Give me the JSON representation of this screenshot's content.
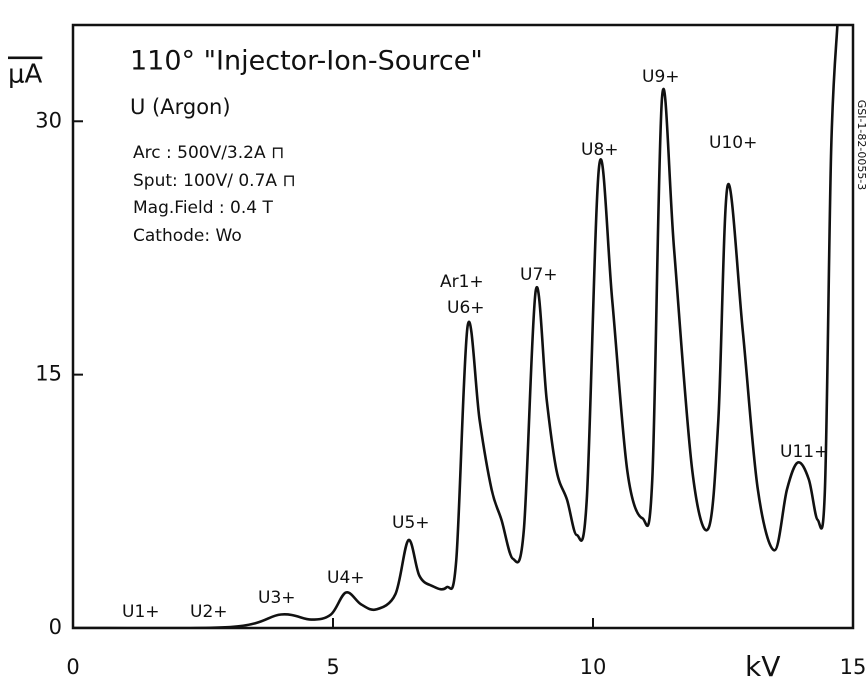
{
  "chart_data": {
    "type": "line",
    "title": "110° \"Injector-Ion-Source\"",
    "subtitle": "U (Argon)",
    "notes": [
      "Arc : 500V/3.2A ⊓",
      "Sput: 100V/ 0.7A ⊓",
      "Mag.Field : 0.4 T",
      "Cathode:  Wo"
    ],
    "side_text": "GSI-1-82-0055-3",
    "x_label": "kV",
    "y_label": "μA",
    "xlim": [
      0,
      15
    ],
    "ylim": [
      0,
      35.7
    ],
    "xticks": [
      0,
      5,
      10,
      15
    ],
    "yticks": [
      0,
      15,
      30
    ],
    "annotations": [
      "U1+",
      "U2+",
      "U3+",
      "U4+",
      "U5+",
      "Ar1+",
      "U6+",
      "U7+",
      "U8+",
      "U9+",
      "U10+",
      "U11+"
    ],
    "series": [
      {
        "color": "#111111",
        "x": [
          0,
          3.03,
          4.0,
          4.58,
          4.96,
          5.25,
          5.54,
          5.83,
          6.2,
          6.45,
          6.66,
          6.9,
          7.18,
          7.37,
          7.59,
          7.82,
          8.05,
          8.24,
          8.46,
          8.67,
          8.9,
          9.11,
          9.3,
          9.5,
          9.69,
          9.88,
          10.12,
          10.37,
          10.66,
          10.95,
          11.14,
          11.33,
          11.56,
          11.91,
          12.22,
          12.41,
          12.59,
          12.88,
          13.17,
          13.49,
          13.73,
          13.94,
          14.15,
          14.32,
          14.46,
          14.58,
          14.7
        ],
        "values": [
          0,
          0.06,
          0.8,
          0.5,
          0.8,
          2.1,
          1.4,
          1.1,
          2.0,
          5.2,
          3.1,
          2.5,
          2.4,
          4.0,
          17.9,
          12.3,
          8.2,
          6.4,
          4.1,
          5.8,
          20.0,
          13.5,
          9.3,
          7.6,
          5.5,
          7.6,
          27.4,
          19.4,
          9.3,
          6.5,
          8.8,
          31.5,
          22.4,
          9.3,
          5.9,
          12.3,
          26.2,
          17.6,
          8.2,
          4.6,
          8.2,
          9.8,
          8.8,
          6.4,
          8.2,
          28.3,
          35.7
        ]
      }
    ]
  }
}
